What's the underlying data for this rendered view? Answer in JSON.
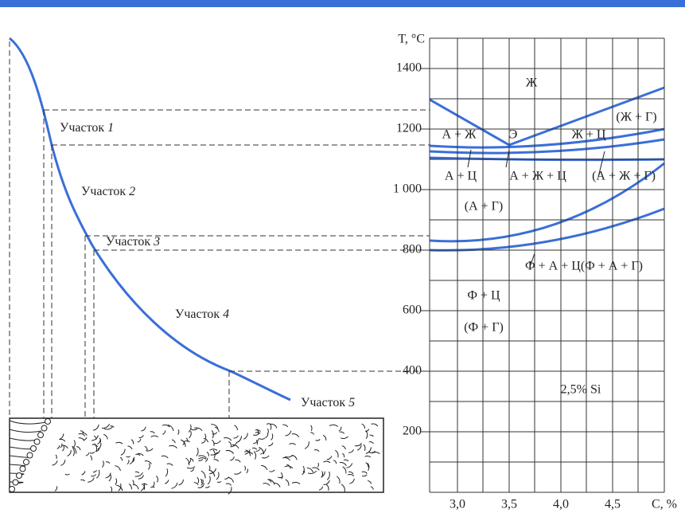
{
  "figure": {
    "zones": [
      {
        "name": "Участок",
        "number": "1"
      },
      {
        "name": "Участок",
        "number": "2"
      },
      {
        "name": "Участок",
        "number": "3"
      },
      {
        "name": "Участок",
        "number": "4"
      },
      {
        "name": "Участок",
        "number": "5"
      }
    ],
    "y_axis_title": "T, °C",
    "y_ticks": [
      "1400",
      "1200",
      "1 000",
      "800",
      "600",
      "400",
      "200"
    ],
    "x_ticks": [
      "3,0",
      "3,5",
      "4,0",
      "4,5"
    ],
    "x_axis_title": "C, %",
    "phase_labels": [
      "Ж",
      "(Ж + Г)",
      "А + Ж",
      "Э",
      "Ж + Ц",
      "А + Ц",
      "А + Ж + Ц",
      "(А + Ж + Г)",
      "(А + Г)",
      "Ф + А + Ц(Ф + А + Г)",
      "Ф + Ц",
      "(Ф + Г)"
    ],
    "note": "2,5% Si"
  }
}
